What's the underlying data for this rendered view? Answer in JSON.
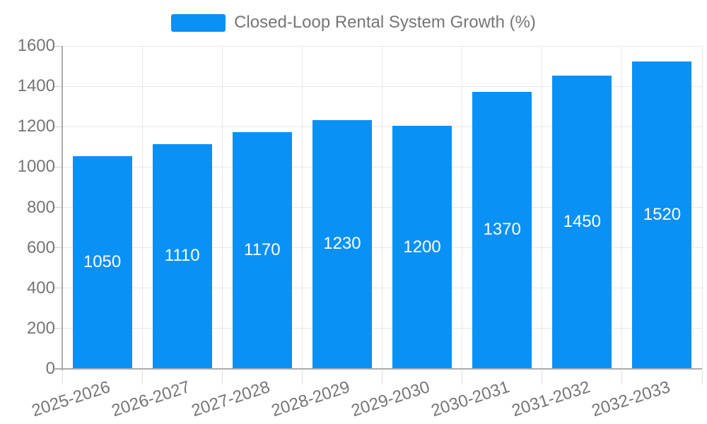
{
  "legend": {
    "label": "Closed-Loop Rental System Growth (%)"
  },
  "chart_data": {
    "type": "bar",
    "title": "Closed-Loop Rental System Growth (%)",
    "categories": [
      "2025-2026",
      "2026-2027",
      "2027-2028",
      "2028-2029",
      "2029-2030",
      "2030-2031",
      "2031-2032",
      "2032-2033"
    ],
    "values": [
      1050,
      1110,
      1170,
      1230,
      1200,
      1370,
      1450,
      1520
    ],
    "xlabel": "",
    "ylabel": "",
    "ylim": [
      0,
      1600
    ],
    "ytick_step": 200,
    "yticks": [
      0,
      200,
      400,
      600,
      800,
      1000,
      1200,
      1400,
      1600
    ],
    "grid": true,
    "legend_entries": [
      "Closed-Loop Rental System Growth (%)"
    ],
    "legend_position": "top-center",
    "value_labels_inside_bars": true,
    "colors": {
      "bar": "#0991f5",
      "grid": "#e7e7e7",
      "axis": "#aaaaaa",
      "tick": "#cccccc",
      "text": "#757575",
      "value_label": "#ffffff"
    }
  }
}
